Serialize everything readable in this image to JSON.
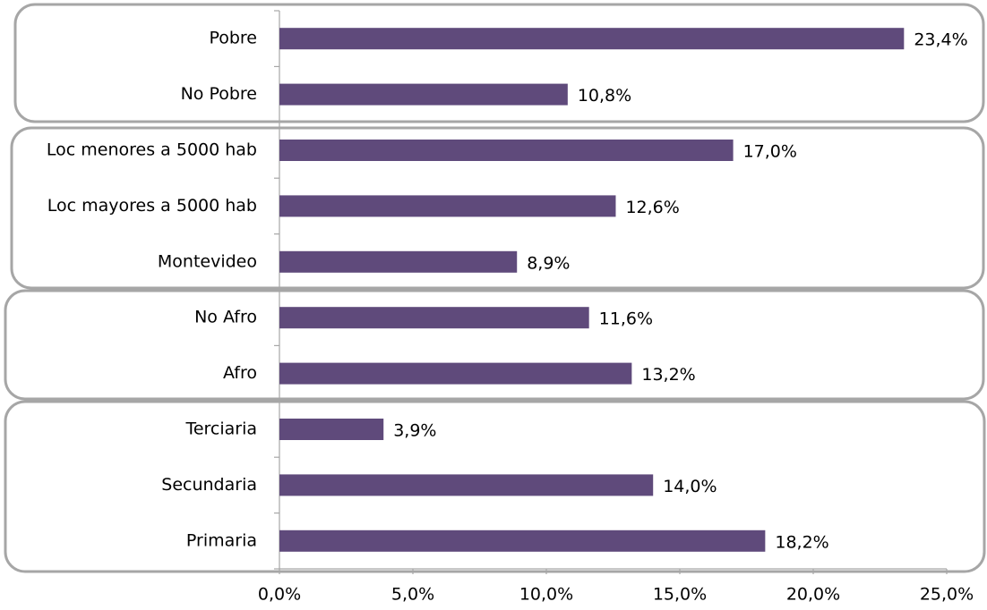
{
  "chart_data": {
    "type": "bar",
    "orientation": "horizontal",
    "categories": [
      "Pobre",
      "No Pobre",
      "Loc menores a 5000 hab",
      "Loc mayores a 5000 hab",
      "Montevideo",
      "No Afro",
      "Afro",
      "Terciaria",
      "Secundaria",
      "Primaria"
    ],
    "values": [
      23.4,
      10.8,
      17.0,
      12.6,
      8.9,
      11.6,
      13.2,
      3.9,
      14.0,
      18.2
    ],
    "value_labels": [
      "23,4%",
      "10,8%",
      "17,0%",
      "12,6%",
      "8,9%",
      "11,6%",
      "13,2%",
      "3,9%",
      "14,0%",
      "18,2%"
    ],
    "color": "#5f4a7b",
    "xlim": [
      0,
      25
    ],
    "xticks": [
      {
        "value": 0,
        "label": "0,0%"
      },
      {
        "value": 5,
        "label": "5,0%"
      },
      {
        "value": 10,
        "label": "10,0%"
      },
      {
        "value": 15,
        "label": "15,0%"
      },
      {
        "value": 20,
        "label": "20,0%"
      },
      {
        "value": 25,
        "label": "25,0%"
      }
    ],
    "grid": false
  }
}
